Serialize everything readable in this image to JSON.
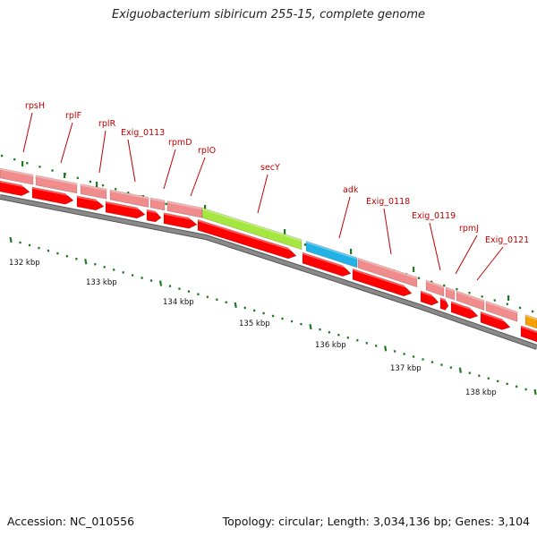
{
  "title": "Exiguobacterium sibiricum 255-15, complete genome",
  "accession": "Accession: NC_010556",
  "topology": "Topology: circular; Length: 3,034,136 bp; Genes: 3,104",
  "colors": {
    "backbone": "#8a8a8a",
    "gene": "#ff0000",
    "gene_light": "#f08c8c",
    "label": "#c00000",
    "tick": "#1e7a1e",
    "secY": "#a6e640",
    "adk": "#22b2e6",
    "orange_feature": "#f5a000"
  },
  "kbp_labels": [
    "132 kbp",
    "133 kbp",
    "134 kbp",
    "135 kbp",
    "136 kbp",
    "137 kbp",
    "138 kbp"
  ],
  "gene_labels": [
    "rpsH",
    "rplF",
    "rplR",
    "Exig_0113",
    "rpmD",
    "rplO",
    "secY",
    "adk",
    "Exig_0118",
    "Exig_0119",
    "rpmJ",
    "Exig_0121"
  ]
}
